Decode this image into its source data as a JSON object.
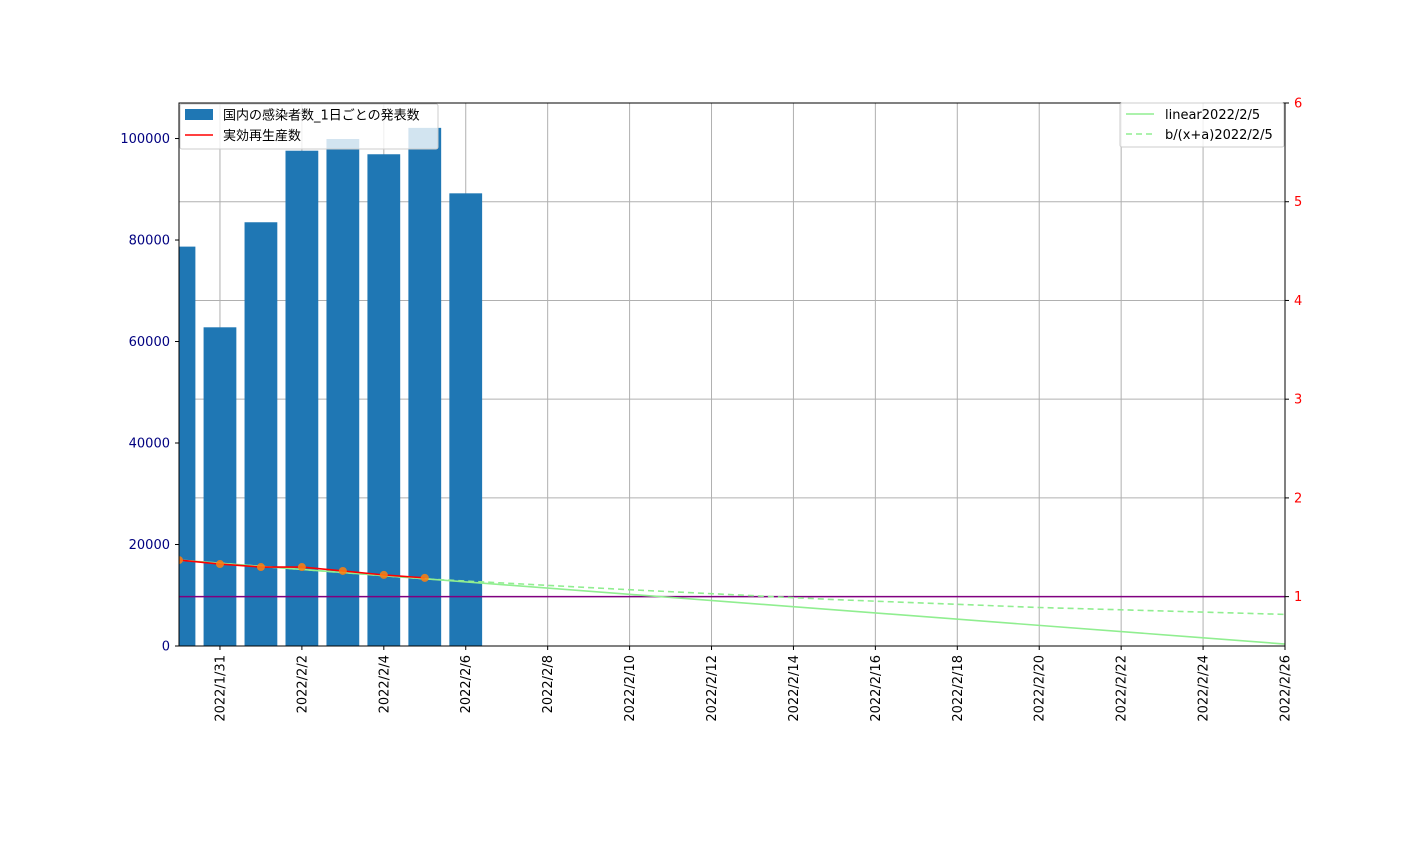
{
  "chart_data": {
    "type": "bar",
    "x_dates": [
      "2022/1/30",
      "2022/1/31",
      "2022/2/1",
      "2022/2/2",
      "2022/2/3",
      "2022/2/4",
      "2022/2/5",
      "2022/2/6"
    ],
    "series": [
      {
        "name": "国内の感染者数_1日ごとの発表数",
        "type": "bar",
        "axis": "left",
        "color": "#1f77b4",
        "values": [
          78700,
          62800,
          83500,
          97600,
          99900,
          96900,
          102100,
          89200
        ]
      },
      {
        "name": "実効再生産数",
        "type": "line",
        "axis": "right",
        "color": "#ff0000",
        "x": [
          "2022/1/30",
          "2022/1/31",
          "2022/2/1",
          "2022/2/2",
          "2022/2/3",
          "2022/2/4",
          "2022/2/5"
        ],
        "values": [
          1.37,
          1.33,
          1.3,
          1.3,
          1.26,
          1.22,
          1.19
        ]
      },
      {
        "name": "linear2022/2/5",
        "type": "line",
        "axis": "right",
        "color": "#90ee90",
        "style": "solid",
        "x": [
          "2022/1/30",
          "2022/2/26"
        ],
        "values": [
          1.37,
          0.52
        ]
      },
      {
        "name": "b/(x+a)2022/2/5",
        "type": "line",
        "axis": "right",
        "color": "#90ee90",
        "style": "dashed",
        "x": [
          "2022/1/30",
          "2022/2/5",
          "2022/2/10",
          "2022/2/15",
          "2022/2/20",
          "2022/2/26"
        ],
        "values": [
          1.37,
          1.18,
          1.07,
          0.97,
          0.89,
          0.82
        ]
      }
    ],
    "reference_line": {
      "axis": "right",
      "value": 1,
      "color": "#800080"
    },
    "x_range": [
      "2022/1/30",
      "2022/2/26"
    ],
    "x_tick_labels": [
      "2022/1/31",
      "2022/2/2",
      "2022/2/4",
      "2022/2/6",
      "2022/2/8",
      "2022/2/10",
      "2022/2/12",
      "2022/2/14",
      "2022/2/16",
      "2022/2/18",
      "2022/2/20",
      "2022/2/22",
      "2022/2/24",
      "2022/2/26"
    ],
    "y_left": {
      "range": [
        0,
        107000
      ],
      "ticks": [
        "0",
        "20000",
        "40000",
        "60000",
        "80000",
        "100000"
      ],
      "color": "#000080"
    },
    "y_right": {
      "range": [
        0.5,
        6
      ],
      "ticks": [
        "1",
        "2",
        "3",
        "4",
        "5",
        "6"
      ],
      "color": "#ff0000"
    },
    "grid": true,
    "legend_left": {
      "placement": "upper-left",
      "entries": [
        "国内の感染者数_1日ごとの発表数",
        "実効再生産数"
      ]
    },
    "legend_right": {
      "placement": "upper-right",
      "entries": [
        "linear2022/2/5",
        "b/(x+a)2022/2/5"
      ]
    }
  }
}
